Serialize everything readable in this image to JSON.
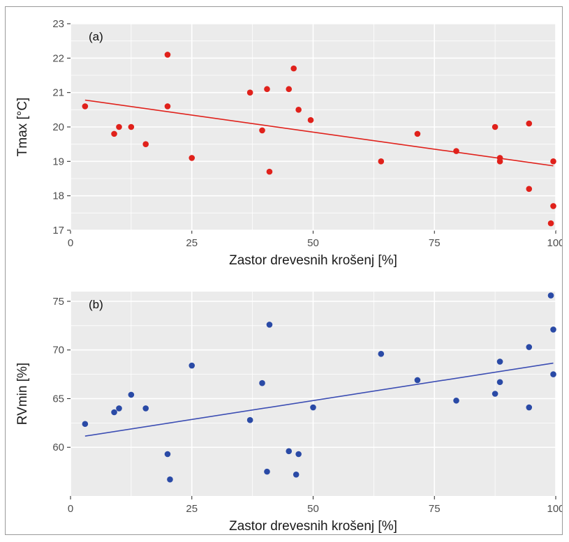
{
  "chart_data": [
    {
      "type": "scatter",
      "panel_label": "(a)",
      "xlabel": "Zastor drevesnih krošenj [%]",
      "ylabel": "Tmax [°C]",
      "xlim": [
        0,
        100
      ],
      "ylim": [
        17,
        23
      ],
      "xticks": [
        "0",
        "25",
        "50",
        "75",
        "100"
      ],
      "yticks": [
        "17",
        "18",
        "19",
        "20",
        "21",
        "22",
        "23"
      ],
      "grid": true,
      "colors": {
        "points": "#e0211b",
        "trend": "#e0211b",
        "panel_bg": "#ebebeb",
        "grid": "#ffffff"
      },
      "points": [
        {
          "x": 3,
          "y": 20.6
        },
        {
          "x": 9,
          "y": 19.8
        },
        {
          "x": 10,
          "y": 20.0
        },
        {
          "x": 12.5,
          "y": 20.0
        },
        {
          "x": 15.5,
          "y": 19.5
        },
        {
          "x": 20,
          "y": 20.6
        },
        {
          "x": 20,
          "y": 22.1
        },
        {
          "x": 25,
          "y": 19.1
        },
        {
          "x": 37,
          "y": 21.0
        },
        {
          "x": 39.5,
          "y": 19.9
        },
        {
          "x": 40.5,
          "y": 21.1
        },
        {
          "x": 41,
          "y": 18.7
        },
        {
          "x": 45,
          "y": 21.1
        },
        {
          "x": 46,
          "y": 21.7
        },
        {
          "x": 47,
          "y": 20.5
        },
        {
          "x": 49.5,
          "y": 20.2
        },
        {
          "x": 64,
          "y": 19.0
        },
        {
          "x": 71.5,
          "y": 19.8
        },
        {
          "x": 79.5,
          "y": 19.3
        },
        {
          "x": 87.5,
          "y": 20.0
        },
        {
          "x": 88.5,
          "y": 19.1
        },
        {
          "x": 88.5,
          "y": 19.0
        },
        {
          "x": 94.5,
          "y": 20.1
        },
        {
          "x": 94.5,
          "y": 18.2
        },
        {
          "x": 99,
          "y": 17.2
        },
        {
          "x": 99.5,
          "y": 17.7
        },
        {
          "x": 99.5,
          "y": 19.0
        }
      ],
      "trend_line": {
        "x": [
          3,
          99.5
        ],
        "y": [
          20.78,
          18.87
        ]
      }
    },
    {
      "type": "scatter",
      "panel_label": "(b)",
      "xlabel": "Zastor drevesnih krošenj [%]",
      "ylabel": "RVmin [%]",
      "xlim": [
        0,
        100
      ],
      "ylim": [
        55,
        76
      ],
      "xticks": [
        "0",
        "25",
        "50",
        "75",
        "100"
      ],
      "yticks": [
        "60",
        "65",
        "70",
        "75"
      ],
      "grid": true,
      "colors": {
        "points": "#2a4aa6",
        "trend": "#3b4db3",
        "panel_bg": "#ebebeb",
        "grid": "#ffffff"
      },
      "points": [
        {
          "x": 3,
          "y": 62.4
        },
        {
          "x": 9,
          "y": 63.6
        },
        {
          "x": 10,
          "y": 64.0
        },
        {
          "x": 12.5,
          "y": 65.4
        },
        {
          "x": 15.5,
          "y": 64.0
        },
        {
          "x": 20,
          "y": 59.3
        },
        {
          "x": 20.5,
          "y": 56.7
        },
        {
          "x": 25,
          "y": 68.4
        },
        {
          "x": 37,
          "y": 62.8
        },
        {
          "x": 39.5,
          "y": 66.6
        },
        {
          "x": 40.5,
          "y": 57.5
        },
        {
          "x": 41,
          "y": 72.6
        },
        {
          "x": 45,
          "y": 59.6
        },
        {
          "x": 46.5,
          "y": 57.2
        },
        {
          "x": 47,
          "y": 59.3
        },
        {
          "x": 50,
          "y": 64.1
        },
        {
          "x": 64,
          "y": 69.6
        },
        {
          "x": 71.5,
          "y": 66.9
        },
        {
          "x": 79.5,
          "y": 64.8
        },
        {
          "x": 87.5,
          "y": 65.5
        },
        {
          "x": 88.5,
          "y": 68.8
        },
        {
          "x": 88.5,
          "y": 66.7
        },
        {
          "x": 94.5,
          "y": 70.3
        },
        {
          "x": 94.5,
          "y": 64.1
        },
        {
          "x": 99,
          "y": 75.6
        },
        {
          "x": 99.5,
          "y": 72.1
        },
        {
          "x": 99.5,
          "y": 67.5
        }
      ],
      "trend_line": {
        "x": [
          3,
          99.5
        ],
        "y": [
          61.15,
          68.65
        ]
      }
    }
  ]
}
